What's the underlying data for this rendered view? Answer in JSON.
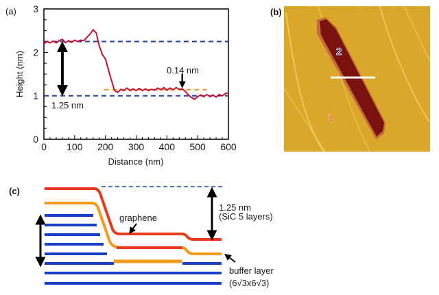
{
  "panels": {
    "a_label": "(a)",
    "b_label": "(b)",
    "c_label": "(c)"
  },
  "chart_data": {
    "type": "line",
    "title": "",
    "xlabel": "Distance (nm)",
    "ylabel": "Height (nm)",
    "xlim": [
      0,
      600
    ],
    "ylim": [
      0,
      3
    ],
    "x_ticks": [
      0,
      100,
      200,
      300,
      400,
      500,
      600
    ],
    "y_ticks": [
      0,
      1,
      2,
      3
    ],
    "grid": false,
    "series": [
      {
        "name": "height profile",
        "color": "#c8102e",
        "x": [
          0,
          10,
          20,
          30,
          40,
          50,
          60,
          70,
          80,
          90,
          100,
          110,
          120,
          130,
          140,
          150,
          160,
          170,
          180,
          190,
          200,
          210,
          220,
          230,
          240,
          250,
          260,
          270,
          280,
          290,
          300,
          310,
          320,
          330,
          340,
          350,
          360,
          370,
          380,
          390,
          400,
          410,
          420,
          430,
          440,
          450,
          460,
          470,
          480,
          490,
          500,
          510,
          520,
          530,
          540,
          550,
          560,
          570,
          580,
          590,
          600
        ],
        "y": [
          2.2,
          2.25,
          2.22,
          2.26,
          2.22,
          2.27,
          2.3,
          2.22,
          2.27,
          2.23,
          2.28,
          2.25,
          2.28,
          2.27,
          2.35,
          2.42,
          2.52,
          2.45,
          2.15,
          1.95,
          1.85,
          1.6,
          1.35,
          1.12,
          1.08,
          1.15,
          1.12,
          1.18,
          1.12,
          1.16,
          1.12,
          1.17,
          1.12,
          1.16,
          1.12,
          1.15,
          1.13,
          1.18,
          1.14,
          1.19,
          1.13,
          1.18,
          1.14,
          1.19,
          1.15,
          1.16,
          1.1,
          1.02,
          0.96,
          0.92,
          0.98,
          1.02,
          0.98,
          1.03,
          0.98,
          1.02,
          0.97,
          1.03,
          1.0,
          1.05,
          1.07
        ]
      }
    ],
    "reference_lines": [
      {
        "name": "upper level",
        "y": 2.25,
        "color": "#1f3a9e",
        "style": "dashed",
        "x_range": [
          0,
          600
        ]
      },
      {
        "name": "lower level",
        "y": 1.0,
        "color": "#1f3a9e",
        "style": "dashed",
        "x_range": [
          0,
          600
        ]
      },
      {
        "name": "buffer level",
        "y": 1.14,
        "color": "#f0961e",
        "style": "dashed",
        "x_range": [
          195,
          530
        ]
      }
    ],
    "annotations": [
      {
        "text": "1.25 nm",
        "type": "double-arrow",
        "x": 60,
        "y_from": 1.0,
        "y_to": 2.25
      },
      {
        "text": "0.14 nm",
        "type": "down-arrow",
        "x": 450,
        "y": 1.16
      }
    ]
  },
  "afm": {
    "region_1_label": "1",
    "region_2_label": "2",
    "colors": {
      "background": "#d6a020",
      "trench": "#7a1210",
      "region1_text": "#d8211b",
      "region2_text": "#2a3f8a",
      "scan_line": "#ffffff"
    }
  },
  "diagram": {
    "graphene_label": "graphene",
    "step_label_line1": "1.25 nm",
    "step_label_line2": "(SiC 5 layers)",
    "buffer_label_line1": "buffer layer",
    "buffer_label_line2": "(6√3x6√3)",
    "colors": {
      "graphene": "#e8391c",
      "buffer": "#f39a1b",
      "sic": "#1a3fc4",
      "arrow": "#000000"
    }
  }
}
